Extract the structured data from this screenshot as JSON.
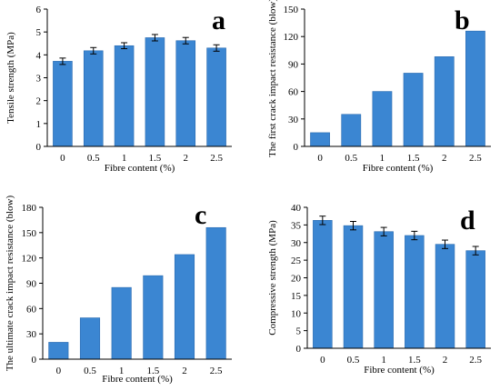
{
  "chart_data": [
    {
      "panel": "a",
      "type": "bar",
      "categories": [
        "0",
        "0.5",
        "1",
        "1.5",
        "2",
        "2.5"
      ],
      "values": [
        3.72,
        4.18,
        4.4,
        4.75,
        4.62,
        4.3
      ],
      "errors": [
        0.14,
        0.14,
        0.13,
        0.14,
        0.14,
        0.14
      ],
      "xlabel": "Fibre content (%)",
      "ylabel": "Tensile strength (MPa)",
      "ylim": [
        0,
        6
      ],
      "yticks": [
        "0",
        "1",
        "2",
        "3",
        "4",
        "5",
        "6"
      ],
      "grid": false
    },
    {
      "panel": "b",
      "type": "bar",
      "categories": [
        "0",
        "0.5",
        "1",
        "1.5",
        "2",
        "2.5"
      ],
      "values": [
        15,
        35,
        60,
        80,
        98,
        126
      ],
      "xlabel": "Fibre content (%)",
      "ylabel": "The first crack impact resistance (blow)",
      "ylim": [
        0,
        150
      ],
      "yticks": [
        "0",
        "30",
        "60",
        "90",
        "120",
        "150"
      ],
      "grid": false
    },
    {
      "panel": "c",
      "type": "bar",
      "categories": [
        "0",
        "0.5",
        "1",
        "1.5",
        "2",
        "2.5"
      ],
      "values": [
        20,
        49,
        85,
        99,
        124,
        156
      ],
      "xlabel": "Fibre content (%)",
      "ylabel": "The ultimate crack impact resistance (blow)",
      "ylim": [
        0,
        180
      ],
      "yticks": [
        "0",
        "30",
        "60",
        "90",
        "120",
        "150",
        "180"
      ],
      "grid": false
    },
    {
      "panel": "d",
      "type": "bar",
      "categories": [
        "0",
        "0.5",
        "1",
        "1.5",
        "2",
        "2.5"
      ],
      "values": [
        36.3,
        34.8,
        33.1,
        32.0,
        29.5,
        27.7
      ],
      "errors": [
        1.2,
        1.2,
        1.2,
        1.2,
        1.2,
        1.2
      ],
      "xlabel": "Fibre content (%)",
      "ylabel": "Compressive strength (MPa)",
      "ylim": [
        0,
        40
      ],
      "yticks": [
        "0",
        "5",
        "10",
        "15",
        "20",
        "25",
        "30",
        "35",
        "40"
      ],
      "grid": false
    }
  ]
}
